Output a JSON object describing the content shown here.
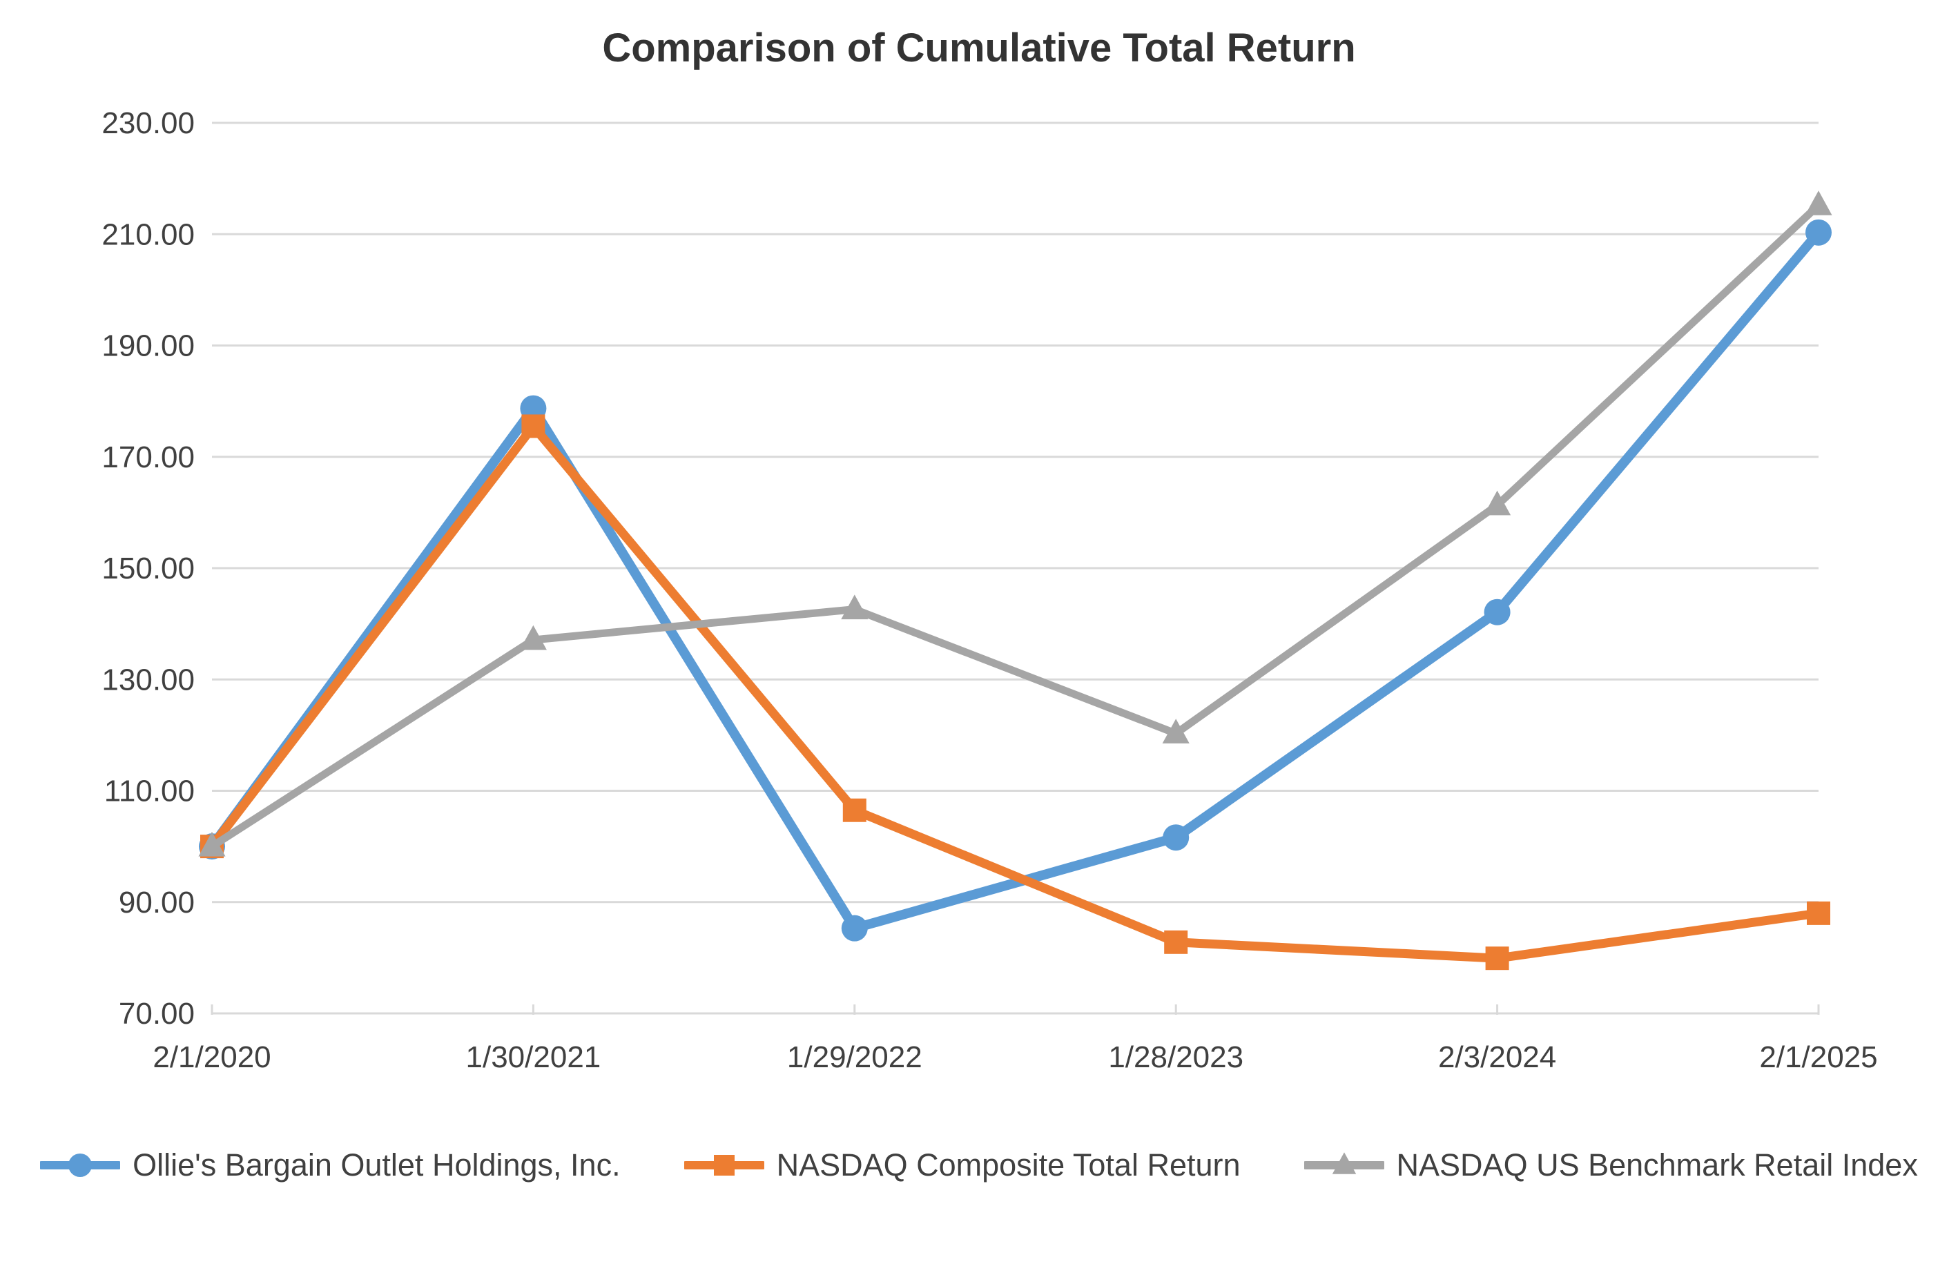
{
  "chart_data": {
    "type": "line",
    "title": "Comparison of Cumulative Total Return",
    "categories": [
      "2/1/2020",
      "1/30/2021",
      "1/29/2022",
      "1/28/2023",
      "2/3/2024",
      "2/1/2025"
    ],
    "series": [
      {
        "name": "Ollie's Bargain Outlet Holdings, Inc.",
        "marker": "circle",
        "color": "#5B9BD5",
        "line_width": 14,
        "values": [
          100.0,
          178.7,
          85.3,
          101.6,
          142.1,
          210.3
        ]
      },
      {
        "name": "NASDAQ Composite Total Return",
        "marker": "square",
        "color": "#ED7D31",
        "line_width": 13,
        "values": [
          100.0,
          175.5,
          106.5,
          82.8,
          79.9,
          88.0
        ]
      },
      {
        "name": "NASDAQ US Benchmark Retail Index",
        "marker": "triangle",
        "color": "#A5A5A5",
        "line_width": 11,
        "values": [
          100.0,
          137.1,
          142.6,
          120.3,
          161.3,
          215.2
        ]
      }
    ],
    "ylim": [
      70,
      230
    ],
    "y_tick_step": 20,
    "y_tick_labels": [
      "70.00",
      "90.00",
      "110.00",
      "130.00",
      "150.00",
      "170.00",
      "190.00",
      "210.00",
      "230.00"
    ],
    "xlabel": "",
    "ylabel": "",
    "grid": "horizontal",
    "legend_position": "bottom"
  },
  "styles": {
    "background": "#FFFFFF",
    "gridline_color": "#D9D9D9",
    "axis_line_color": "#D9D9D9",
    "title_color": "#333333",
    "tick_label_color": "#404040",
    "legend_text_color": "#404040"
  }
}
